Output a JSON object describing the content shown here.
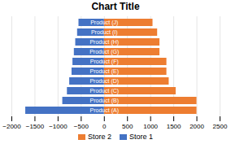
{
  "chart_data": {
    "type": "bar",
    "title": "Chart Title",
    "orientation": "horizontal",
    "categories": [
      "Product (A)",
      "Product (B)",
      "Product (C)",
      "Product (D)",
      "Product (E)",
      "Product (F)",
      "Product (G)",
      "Product (H)",
      "Product (I)",
      "Product (J)"
    ],
    "series": [
      {
        "name": "Store 2",
        "color": "#ED7D31",
        "values": [
          2000,
          2000,
          1550,
          1400,
          1350,
          1350,
          1200,
          1200,
          1150,
          1050
        ]
      },
      {
        "name": "Store 1",
        "color": "#4472C4",
        "values": [
          -1700,
          -900,
          -800,
          -750,
          -700,
          -680,
          -650,
          -620,
          -580,
          -550
        ]
      }
    ],
    "xlim": [
      -2000,
      2500
    ],
    "xticks": [
      -2000,
      -1500,
      -1000,
      -500,
      0,
      500,
      1000,
      1500,
      2000,
      2500
    ],
    "grid": true,
    "legend": "bottom",
    "tick_labels": "x"
  }
}
